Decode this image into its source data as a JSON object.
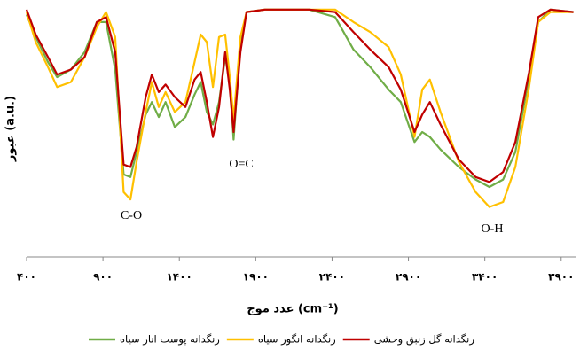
{
  "chart_data": {
    "type": "line",
    "x_label": "عدد موج (cm⁻¹)",
    "y_label": "عبور (a.u.)",
    "annotations": [
      "C-O",
      "O=C",
      "O-H"
    ],
    "x": [
      400,
      460,
      540,
      600,
      690,
      780,
      860,
      920,
      980,
      1035,
      1080,
      1120,
      1180,
      1220,
      1265,
      1310,
      1370,
      1440,
      1500,
      1540,
      1580,
      1620,
      1660,
      1700,
      1730,
      1755,
      1800,
      1840,
      1960,
      2250,
      2420,
      2540,
      2650,
      2770,
      2850,
      2940,
      2990,
      3040,
      3110,
      3230,
      3340,
      3430,
      3520,
      3600,
      3690,
      3750,
      3830,
      3980
    ],
    "series": [
      {
        "name": "رنگدانه پوست انار سیاه",
        "color": "#70ad47",
        "values": [
          97,
          88,
          78,
          72,
          75,
          82,
          94,
          94,
          75,
          33,
          32,
          42,
          57,
          62,
          56,
          62,
          52,
          56,
          65,
          70,
          58,
          53,
          62,
          80,
          70,
          47,
          85,
          98,
          99,
          99,
          96,
          83,
          76,
          67,
          62,
          46,
          50,
          48,
          43,
          36,
          31,
          28,
          31,
          42,
          72,
          94,
          99,
          98
        ]
      },
      {
        "name": "رنگدانه انگور سیاه",
        "color": "#ffc000",
        "values": [
          98,
          86,
          76,
          68,
          70,
          80,
          92,
          98,
          88,
          26,
          23,
          38,
          58,
          70,
          60,
          66,
          58,
          62,
          78,
          89,
          86,
          68,
          88,
          89,
          72,
          55,
          88,
          98,
          99,
          99,
          99,
          94,
          90,
          84,
          73,
          48,
          67,
          71,
          58,
          38,
          26,
          20,
          22,
          36,
          68,
          94,
          98,
          98
        ]
      },
      {
        "name": "رنگدانه گل زنبق وحشی",
        "color": "#c00000",
        "values": [
          99,
          89,
          80,
          73,
          75,
          80,
          94,
          96,
          82,
          37,
          36,
          44,
          64,
          73,
          66,
          69,
          64,
          60,
          71,
          74,
          62,
          48,
          60,
          82,
          67,
          50,
          82,
          98,
          99,
          99,
          98,
          90,
          83,
          76,
          67,
          50,
          57,
          62,
          53,
          39,
          32,
          30,
          34,
          46,
          74,
          96,
          99,
          98
        ]
      }
    ],
    "xlim": [
      400,
      4000
    ],
    "ylim": [
      0,
      100
    ],
    "xticks": [
      {
        "value": 400,
        "label": "۴۰۰"
      },
      {
        "value": 900,
        "label": "۹۰۰"
      },
      {
        "value": 1400,
        "label": "۱۴۰۰"
      },
      {
        "value": 1900,
        "label": "۱۹۰۰"
      },
      {
        "value": 2400,
        "label": "۲۴۰۰"
      },
      {
        "value": 2900,
        "label": "۲۹۰۰"
      },
      {
        "value": 3400,
        "label": "۳۴۰۰"
      },
      {
        "value": 3900,
        "label": "۳۹۰۰"
      }
    ],
    "grid": false
  }
}
